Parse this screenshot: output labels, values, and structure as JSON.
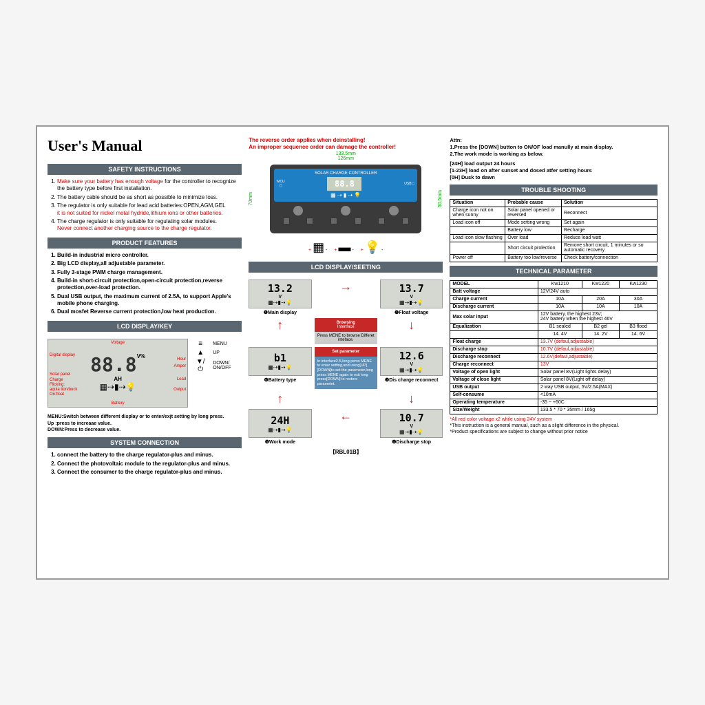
{
  "title": "User's  Manual",
  "col1": {
    "safety_hdr": "SAFETY INSTRUCTIONS",
    "safety": [
      {
        "a": "Make sure your battery has enough voltage",
        "b": " for the controller to recognize the battery type before first installation."
      },
      {
        "a": "",
        "b": "The battery cable should be as short as possible to minimize loss."
      },
      {
        "a": "",
        "b": "The regulator is only suitable for lead acid batteries:OPEN,AGM,GEL",
        "c": "it is not suited for nickel metal hydride,lithium ions or other batteries."
      },
      {
        "a": "",
        "b": "The charge regulator is only suitable for regulating solar modules.",
        "c": "Never connect another charging source to the charge regulator."
      }
    ],
    "features_hdr": "PRODUCT FEATURES",
    "features": [
      "Build-in industrial micro controller.",
      "Big LCD display,all adjustable parameter.",
      "Fully 3-stage PWM charge management.",
      "Build-in short-circuit protection,open-circuit protection,reverse protection,over-load protection.",
      "Dual USB output, the maximum current of 2.5A, to support Apple's mobile phone charging.",
      "Dual mosfet Reverse current protection,low heat production."
    ],
    "lcdkey_hdr": "LCD DISPLAY/KEY",
    "lcd": {
      "digits": "88.8",
      "v": "V%",
      "ah": "AH",
      "voltage": "Voltage",
      "digital": "Digital display",
      "hour": "Hour",
      "amper": "Amper",
      "solar": "Solar panel",
      "charge": "Charge",
      "flick": "Flicking:",
      "aq": "aqula tion/buck",
      "on": "On:float",
      "battery": "Battery",
      "load": "Load",
      "output": "Output"
    },
    "keys": [
      {
        "icon": "≡",
        "label": "MENU"
      },
      {
        "icon": "▲",
        "label": "UP"
      },
      {
        "icon": "▼/⏻",
        "label": "DOWN/\nON/OFF"
      }
    ],
    "menu_txt": "MENU:Switch between different display or to enter/exjt setting by long press.",
    "up_txt": "Up    :press to increaae value.",
    "down_txt": "DOWN:Press to decrease value.",
    "sysconn_hdr": "SYSTEM CONNECTION",
    "sysconn": [
      "connect the battery to the charge regulator-plus and minus.",
      "Connect the photovoltaic module to the regulator-plus and minus.",
      "Connect the consumer to the charge regulator-plus and minus."
    ]
  },
  "col2": {
    "warn1": "The reverse order applies when deinstalling!",
    "warn2": "An improper sequence order can damage the controller!",
    "dim_w": "133.5mm",
    "dim_w2": "126mm",
    "dim_h": "70mm",
    "dim_h2": "50.5mm",
    "dev_title": "SOLAR CHARGE CONTROLLER",
    "dev_lcd": "88.8",
    "lcdset_hdr": "LCD DISPLAY/SEETING",
    "cells": [
      {
        "v": "13.2",
        "u": "V",
        "label": "❶Main display"
      },
      {
        "v": "13.7",
        "u": "V",
        "label": "❷Float voltage"
      },
      {
        "v": "b1",
        "u": "",
        "label": "❻Battery type"
      },
      {
        "v": "12.6",
        "u": "V",
        "label": "❸Dis charge reconnect"
      },
      {
        "v": "24H",
        "u": "",
        "label": "❺Work mode"
      },
      {
        "v": "10.7",
        "u": "V",
        "label": "❹Discharge stop"
      }
    ],
    "browse_hdr": "Browsing",
    "browse_sub": "Intenface",
    "browse_txt": "Press MENE to browse Differet inteface.",
    "set_hdr": "Set parameter",
    "set_txt": "In interface2-5,long perss MENE to enter setting,and using[UP][DOWN]to set the parameter,long press MENE again to exit long press[DOWN] to restore parametet.",
    "model": "【RBL01B】"
  },
  "col3": {
    "attn": "Attn:\n1.Press the [DOWN] button to ON/OF load manully at main display.\n2.The work mode is working as below.",
    "modes": "[24H]    load output 24 hours\n[1-23H]  load on after sunset and dosed atfer setting hours\n[0H]     Dusk to dawn",
    "trouble_hdr": "TROUBLE SHOOTING",
    "trouble_cols": [
      "Situation",
      "Probable cause",
      "Solution"
    ],
    "trouble": [
      [
        "Charge icon not on when sunny",
        "Solar panel opened or reversed",
        "Reconnect"
      ],
      [
        "Load icon off",
        "Mode setting wrong",
        "Set again"
      ],
      [
        "",
        "Battery low",
        "Recharge"
      ],
      [
        "Load icon slow flashing",
        "Over load",
        "Reduce load watt"
      ],
      [
        "",
        "Short circuit prolection",
        "Remove short circuit, 1 minutes or so automatic recovery"
      ],
      [
        "Power off",
        "Battery too low/reverse",
        "Check battery/connection"
      ]
    ],
    "tech_hdr": "TECHNICAL PARAMETER",
    "tech": [
      [
        "MODEL",
        "Kw1210",
        "Kw1220",
        "Kw1230"
      ],
      [
        "Batt voltage",
        "12V/24V  auto",
        "",
        ""
      ],
      [
        "Charge current",
        "10A",
        "20A",
        "30A"
      ],
      [
        "Discharge current",
        "10A",
        "10A",
        "10A"
      ],
      [
        "Max solar input",
        "12V battery, the highest 23V;\n24V battery when the highest 46V",
        "",
        ""
      ],
      [
        "Equalization",
        "B1 sealed",
        "B2 gel",
        "B3 flood"
      ],
      [
        "",
        "14. 4V",
        "14. 2V",
        "14. 6V"
      ],
      [
        "Float charge",
        "13.7V  (defaul,adjustable)",
        "",
        ""
      ],
      [
        "Discharge stop",
        "10.7V  (defaul,adjustable)",
        "",
        ""
      ],
      [
        "Discharge reconnect",
        "12.6V(defaul,adjustable)",
        "",
        ""
      ],
      [
        "Charge reconnect",
        "13V",
        "",
        ""
      ],
      [
        "Voltage of open light",
        "Solar panel 8V(Light lights delay)",
        "",
        ""
      ],
      [
        "Voltage of close light",
        "Solar panel 8V(Light off delay)",
        "",
        ""
      ],
      [
        "USB output",
        "2 way USB output,  5V/2.5A(MAX)",
        "",
        ""
      ],
      [
        "Self-consume",
        "<10mA",
        "",
        ""
      ],
      [
        "Operating temperature",
        "-35 ~ +60C",
        "",
        ""
      ],
      [
        "Size/Weight",
        "133.5 * 70 * 35mm  /  165g",
        "",
        ""
      ]
    ],
    "red_rows": [
      7,
      8,
      9,
      10
    ],
    "notes": [
      "*All red color voltage x2 while using 24V system",
      "*This instruction is a general manual, such as a slight difference in the physical.",
      "*Product specifications are subject to change without prior notice"
    ]
  }
}
